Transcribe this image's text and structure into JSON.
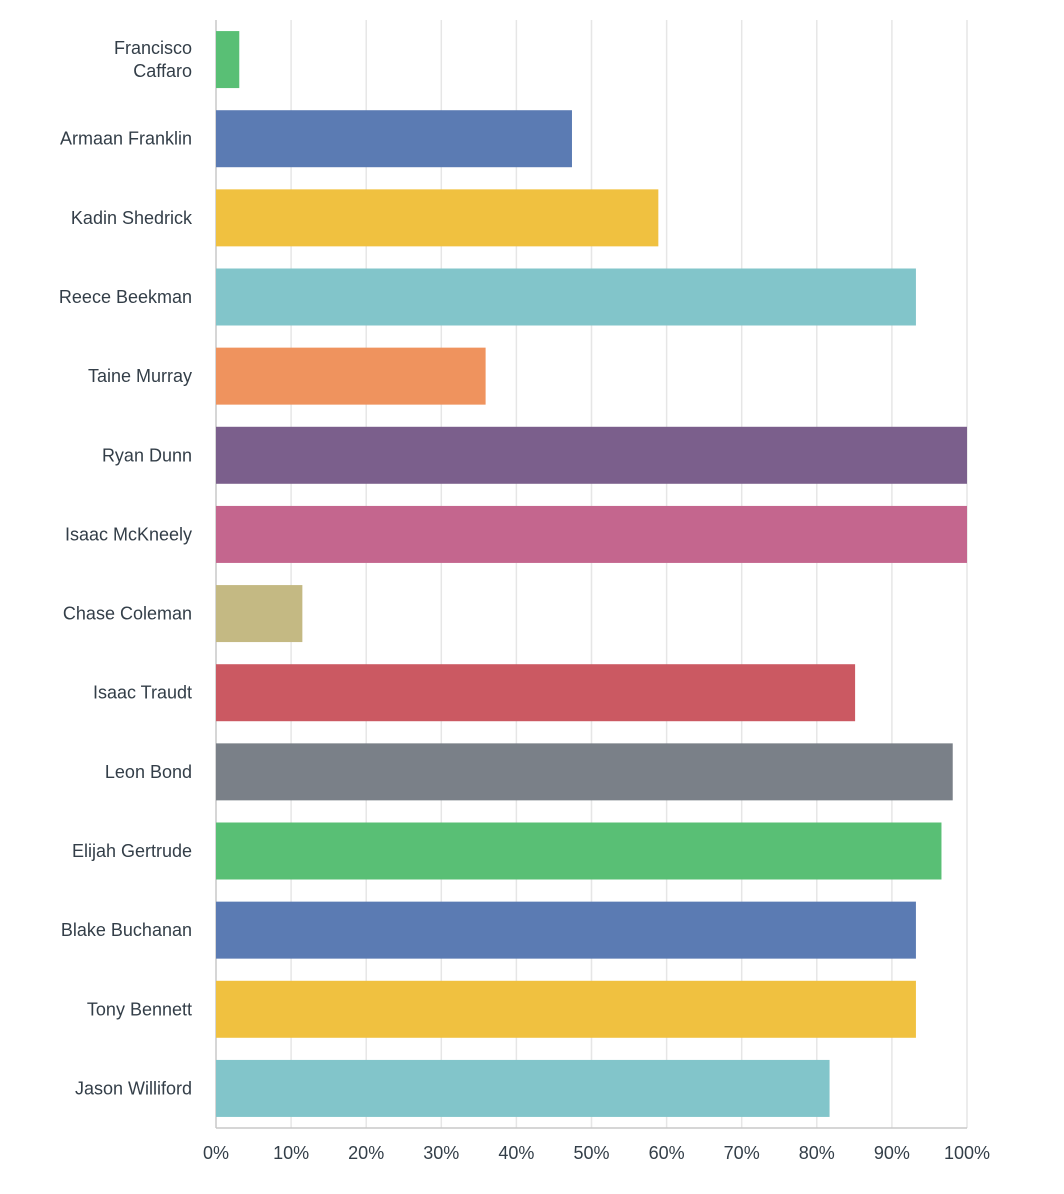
{
  "chart_data": {
    "type": "bar",
    "orientation": "horizontal",
    "title": "",
    "xlabel": "",
    "ylabel": "",
    "xlim": [
      0,
      100
    ],
    "grid": true,
    "categories": [
      "Francisco Caffaro",
      "Armaan Franklin",
      "Kadin Shedrick",
      "Reece Beekman",
      "Taine Murray",
      "Ryan Dunn",
      "Isaac McKneely",
      "Chase Coleman",
      "Isaac Traudt",
      "Leon Bond",
      "Elijah Gertrude",
      "Blake Buchanan",
      "Tony Bennett",
      "Jason Williford"
    ],
    "label_lines": [
      [
        "Francisco",
        "Caffaro"
      ],
      [
        "Armaan Franklin"
      ],
      [
        "Kadin Shedrick"
      ],
      [
        "Reece Beekman"
      ],
      [
        "Taine Murray"
      ],
      [
        "Ryan Dunn"
      ],
      [
        "Isaac McKneely"
      ],
      [
        "Chase Coleman"
      ],
      [
        "Isaac Traudt"
      ],
      [
        "Leon Bond"
      ],
      [
        "Elijah Gertrude"
      ],
      [
        "Blake Buchanan"
      ],
      [
        "Tony Bennett"
      ],
      [
        "Jason Williford"
      ]
    ],
    "values": [
      3.1,
      47.4,
      58.9,
      93.2,
      35.9,
      100,
      100,
      11.5,
      85.1,
      98.1,
      96.6,
      93.2,
      93.2,
      81.7
    ],
    "colors": [
      "#59bf75",
      "#5b7bb3",
      "#f0c140",
      "#82c5ca",
      "#ef935e",
      "#7b5f8c",
      "#c4668e",
      "#c4b983",
      "#cb5962",
      "#7a8088",
      "#59bf75",
      "#5b7bb3",
      "#f0c140",
      "#82c5ca"
    ],
    "xticks": [
      0,
      10,
      20,
      30,
      40,
      50,
      60,
      70,
      80,
      90,
      100
    ],
    "xtick_labels": [
      "0%",
      "10%",
      "20%",
      "30%",
      "40%",
      "50%",
      "60%",
      "70%",
      "80%",
      "90%",
      "100%"
    ]
  }
}
